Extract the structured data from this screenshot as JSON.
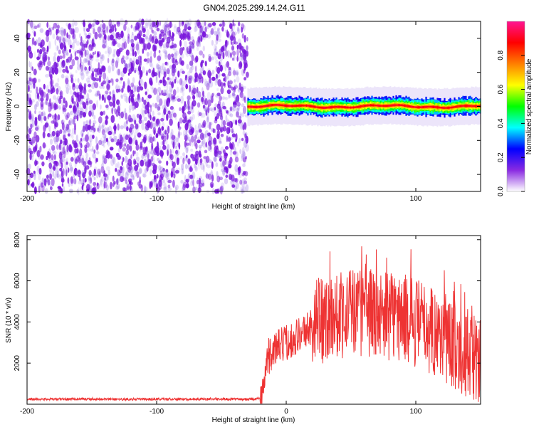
{
  "title": "GN04.2025.299.14.24.G11",
  "chart_data": [
    {
      "type": "heatmap",
      "xlabel": "Height of straight line (km)",
      "ylabel": "Frequency (Hz)",
      "xlim": [
        -200,
        150
      ],
      "ylim": [
        -50,
        50
      ],
      "x_ticks": [
        -200,
        -100,
        0,
        100
      ],
      "x_tick_labels": [
        "-200",
        "-100",
        "0",
        "100"
      ],
      "y_ticks": [
        -40,
        -20,
        0,
        20,
        40
      ],
      "y_tick_labels": [
        "-40",
        "-20",
        "0",
        "20",
        "40"
      ],
      "noise_region_x": [
        -200,
        -30
      ],
      "signal_region_x": [
        -30,
        150
      ],
      "signal_frequency_hz": 0,
      "signal_band_halfwidth_hz": 5,
      "colorbar": {
        "label": "Normalized spectral amplitude",
        "range": [
          0,
          1
        ],
        "ticks": [
          0,
          0.2,
          0.4,
          0.6,
          0.8
        ],
        "tick_labels": [
          "0.0",
          "0.2",
          "0.4",
          "0.6",
          "0.8"
        ],
        "colors": [
          "#ffffff",
          "#8a2be2",
          "#0000ff",
          "#00ffff",
          "#00ff00",
          "#ffff00",
          "#ff7f00",
          "#ff0000",
          "#ff1493"
        ]
      }
    },
    {
      "type": "line",
      "xlabel": "Height of straight line (km)",
      "ylabel": "SNR (10 * v/v)",
      "xlim": [
        -200,
        150
      ],
      "ylim": [
        0,
        8200
      ],
      "x_ticks": [
        -200,
        -100,
        0,
        100
      ],
      "x_tick_labels": [
        "-200",
        "-100",
        "0",
        "100"
      ],
      "y_ticks": [
        2000,
        4000,
        6000,
        8000
      ],
      "y_tick_labels": [
        "2000",
        "4000",
        "6000",
        "8000"
      ],
      "color": "#ee3333",
      "series": [
        {
          "name": "SNR",
          "x": [
            -200,
            -180,
            -160,
            -140,
            -120,
            -100,
            -80,
            -60,
            -40,
            -25,
            -20,
            -17,
            -15,
            -10,
            -5,
            0,
            5,
            10,
            15,
            20,
            25,
            30,
            35,
            40,
            50,
            60,
            70,
            80,
            90,
            100,
            110,
            120,
            130,
            140,
            150
          ],
          "values": [
            250,
            240,
            260,
            250,
            240,
            250,
            245,
            255,
            250,
            250,
            280,
            900,
            2200,
            2600,
            2800,
            3000,
            3200,
            3400,
            3600,
            3800,
            4000,
            4200,
            4300,
            4400,
            4500,
            4500,
            4400,
            4300,
            4200,
            4000,
            3700,
            3300,
            2900,
            2500,
            2000
          ]
        }
      ],
      "noise_amplitude": [
        60,
        900,
        2200
      ]
    }
  ]
}
